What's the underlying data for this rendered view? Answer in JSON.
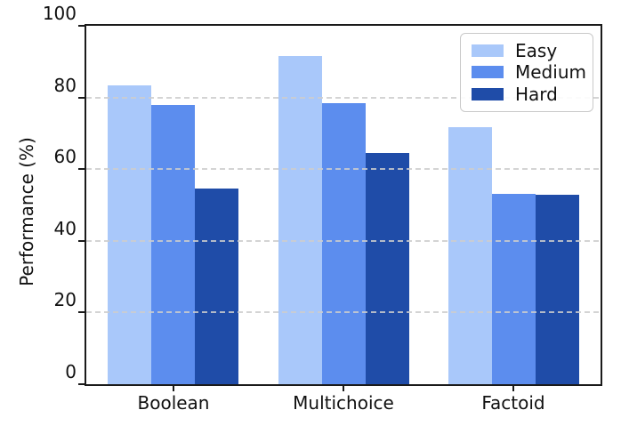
{
  "chart_data": {
    "type": "bar",
    "title": "",
    "xlabel": "",
    "ylabel": "Performance (%)",
    "categories": [
      "Boolean",
      "Multichoice",
      "Factoid"
    ],
    "series": [
      {
        "name": "Easy",
        "color": "#a9c8fa",
        "values": [
          83.4,
          91.5,
          71.7
        ]
      },
      {
        "name": "Medium",
        "color": "#5c8dee",
        "values": [
          77.8,
          78.3,
          53.1
        ]
      },
      {
        "name": "Hard",
        "color": "#1f4ca8",
        "values": [
          54.5,
          64.6,
          52.8
        ]
      }
    ],
    "ylim": [
      0,
      100
    ],
    "yticks": [
      0,
      20,
      40,
      60,
      80,
      100
    ],
    "ytick_labels": [
      "0",
      "20",
      "40",
      "60",
      "80",
      "100"
    ],
    "grid": {
      "axis": "y",
      "style": "dashed",
      "color": "#d4d4d4"
    },
    "legend": {
      "position": "upper right"
    },
    "colors": {
      "background": "#ffffff",
      "spine": "#1a1a1a",
      "text": "#111111",
      "legend_border": "#c9c9c9"
    }
  }
}
